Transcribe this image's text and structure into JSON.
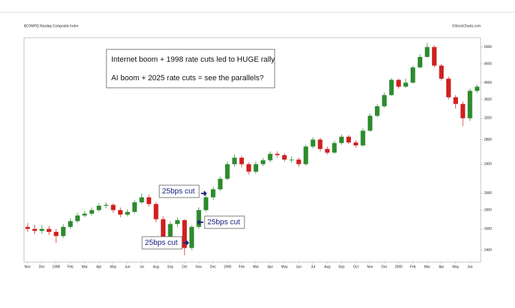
{
  "chart_data": {
    "type": "candlestick",
    "title": "$COMPQ Nasdaq Composite Index",
    "source": "©StockCharts.com",
    "annotations": [
      "Internet boom + 1998 rate cuts led to HUGE rally",
      "AI boom + 2025 rate cuts = see the parallels?",
      "25bps cut",
      "25bps cut",
      "25bps cut"
    ],
    "categories": [
      "Nov",
      null,
      "Dec",
      null,
      "1998",
      null,
      "Feb",
      null,
      "Mar",
      null,
      "Apr",
      null,
      "May",
      null,
      "Jun",
      null,
      "Jul",
      null,
      "Aug",
      null,
      "Sep",
      null,
      "Oct",
      null,
      "Nov",
      null,
      "Dec",
      null,
      "1999",
      null,
      "Feb",
      null,
      "Mar",
      null,
      "Apr",
      null,
      "May",
      null,
      "Jun",
      null,
      "Jul",
      null,
      "Aug",
      null,
      "Sep",
      null,
      "Oct",
      null,
      "Nov",
      null,
      "Dec",
      null,
      "2000",
      null,
      "Feb",
      null,
      "Mar",
      null,
      "Apr",
      null,
      "May",
      null,
      "Jun",
      null
    ],
    "open": [
      1620,
      1600,
      1580,
      1600,
      1570,
      1530,
      1620,
      1680,
      1740,
      1760,
      1800,
      1850,
      1860,
      1800,
      1750,
      1780,
      1890,
      1950,
      1870,
      1700,
      1500,
      1650,
      1690,
      1420,
      1620,
      1800,
      1950,
      2050,
      2190,
      2400,
      2500,
      2400,
      2290,
      2400,
      2460,
      2560,
      2540,
      2470,
      2470,
      2400,
      2680,
      2800,
      2640,
      2580,
      2740,
      2850,
      2750,
      2700,
      2960,
      3250,
      3450,
      3700,
      4070,
      3900,
      4000,
      4400,
      4700,
      5000,
      4450,
      4100,
      3650,
      3500,
      3200,
      3800
    ],
    "high": [
      1660,
      1640,
      1640,
      1630,
      1600,
      1650,
      1710,
      1770,
      1790,
      1830,
      1880,
      1890,
      1880,
      1830,
      1810,
      1920,
      2000,
      1980,
      1890,
      1730,
      1680,
      1720,
      1700,
      1640,
      1830,
      1980,
      2080,
      2220,
      2440,
      2550,
      2530,
      2430,
      2440,
      2500,
      2600,
      2600,
      2570,
      2520,
      2500,
      2710,
      2840,
      2830,
      2680,
      2780,
      2890,
      2880,
      2790,
      3000,
      3300,
      3500,
      3760,
      4120,
      4100,
      4100,
      4450,
      4780,
      5132,
      5050,
      4500,
      4150,
      3700,
      3560,
      3850,
      3950
    ],
    "low": [
      1570,
      1550,
      1550,
      1540,
      1465,
      1510,
      1600,
      1660,
      1720,
      1740,
      1780,
      1820,
      1770,
      1720,
      1730,
      1760,
      1870,
      1840,
      1670,
      1470,
      1480,
      1620,
      1357,
      1400,
      1600,
      1780,
      1920,
      2030,
      2170,
      2360,
      2350,
      2250,
      2260,
      2370,
      2430,
      2500,
      2440,
      2420,
      2360,
      2380,
      2650,
      2600,
      2550,
      2560,
      2710,
      2720,
      2660,
      2680,
      2940,
      3220,
      3420,
      3680,
      3850,
      3870,
      3980,
      4380,
      4680,
      4400,
      4050,
      3600,
      3400,
      3042,
      3150,
      3750
    ],
    "close": [
      1600,
      1580,
      1600,
      1570,
      1530,
      1620,
      1680,
      1740,
      1760,
      1800,
      1850,
      1860,
      1800,
      1750,
      1780,
      1890,
      1950,
      1870,
      1700,
      1500,
      1650,
      1690,
      1420,
      1620,
      1800,
      1950,
      2050,
      2190,
      2400,
      2500,
      2400,
      2290,
      2400,
      2460,
      2560,
      2540,
      2470,
      2470,
      2400,
      2680,
      2800,
      2640,
      2580,
      2740,
      2850,
      2750,
      2700,
      2960,
      3250,
      3450,
      3700,
      4070,
      3900,
      4000,
      4400,
      4700,
      5000,
      4450,
      4100,
      3650,
      3500,
      3200,
      3800,
      3900
    ],
    "up_color": "#2e8b2e",
    "down_color": "#d02020",
    "log_scale": true,
    "ylim": [
      1300,
      5300
    ],
    "yticks": [
      1400,
      1600,
      1800,
      2000,
      2400,
      2800,
      3200,
      3600,
      4000,
      4500,
      5000
    ],
    "grid": false
  }
}
